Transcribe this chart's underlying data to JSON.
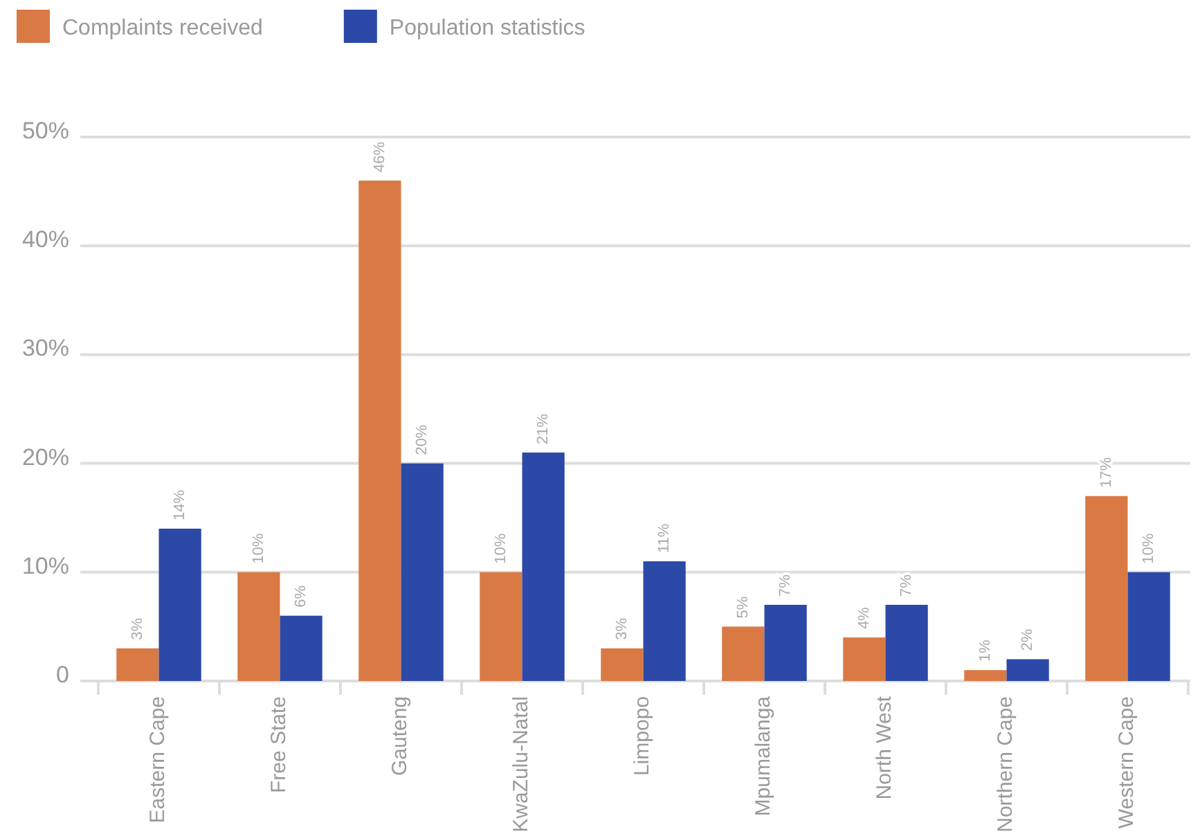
{
  "chart_data": {
    "type": "bar",
    "categories": [
      "Eastern Cape",
      "Free State",
      "Gauteng",
      "KwaZulu-Natal",
      "Limpopo",
      "Mpumalanga",
      "North West",
      "Northern Cape",
      "Western Cape"
    ],
    "series": [
      {
        "name": "Complaints received",
        "color": "#d97a45",
        "values": [
          3,
          10,
          46,
          10,
          3,
          5,
          4,
          1,
          17
        ],
        "value_labels": [
          "3%",
          "10%",
          "46%",
          "10%",
          "3%",
          "5%",
          "4%",
          "1%",
          "17%"
        ]
      },
      {
        "name": "Population statistics",
        "color": "#2c49a8",
        "values": [
          14,
          6,
          20,
          21,
          11,
          7,
          7,
          2,
          10
        ],
        "value_labels": [
          "14%",
          "6%",
          "20%",
          "21%",
          "11%",
          "7%",
          "7%",
          "2%",
          "10%"
        ]
      }
    ],
    "ylim": [
      0,
      50
    ],
    "yticks": [
      0,
      {
        "value": 10,
        "label": "10%"
      },
      {
        "value": 20,
        "label": "20%"
      },
      {
        "value": 30,
        "label": "30%"
      },
      {
        "value": 40,
        "label": "40%"
      },
      {
        "value": 50,
        "label": "50%"
      }
    ],
    "grid": "y",
    "legend": "top left"
  }
}
